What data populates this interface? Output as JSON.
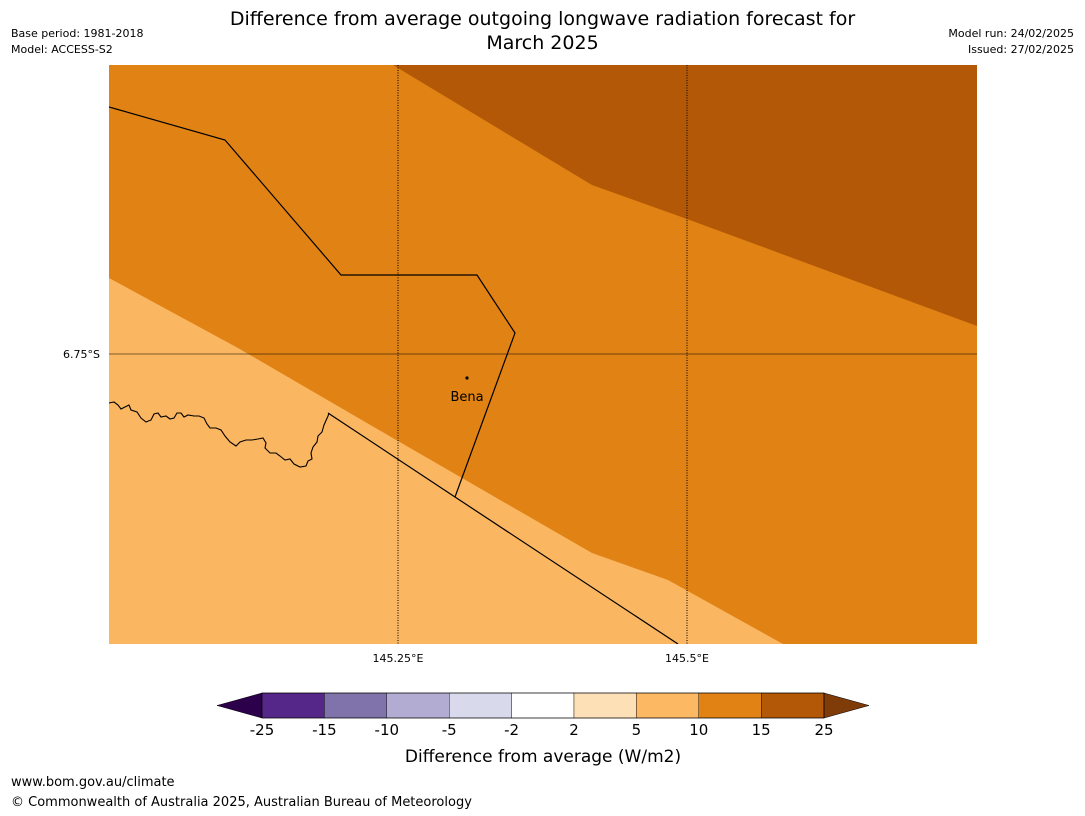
{
  "header": {
    "title_line1": "Difference from average outgoing longwave radiation forecast for",
    "title_line2": "March 2025",
    "base_period": "Base period: 1981-2018",
    "model": "Model: ACCESS-S2",
    "model_run": "Model run: 24/02/2025",
    "issued": "Issued: 27/02/2025"
  },
  "map": {
    "lat_label": "6.75°S",
    "lon_labels": [
      "145.25°E",
      "145.5°E"
    ],
    "place_label": "Bena",
    "fill_colors": {
      "band_5_10": "#fab661",
      "band_10_15": "#e08214",
      "band_15_25": "#b35806"
    }
  },
  "colorbar": {
    "title": "Difference from average (W/m2)",
    "ticks": [
      "-25",
      "-15",
      "-10",
      "-5",
      "-2",
      "2",
      "5",
      "10",
      "15",
      "25"
    ],
    "colors": [
      "#2d004b",
      "#542788",
      "#8073ac",
      "#b2abd2",
      "#d8daeb",
      "#ffffff",
      "#fee0b6",
      "#fdb863",
      "#e08214",
      "#b35806",
      "#7f3b08"
    ]
  },
  "footer": {
    "url": "www.bom.gov.au/climate",
    "copyright": "© Commonwealth of Australia 2025, Australian Bureau of Meteorology"
  }
}
